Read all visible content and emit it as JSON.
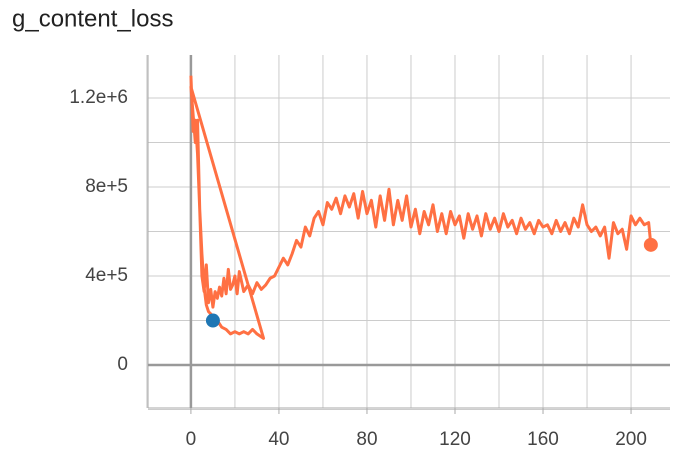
{
  "chart_data": {
    "type": "line",
    "title": "g_content_loss",
    "xlim": [
      -19.5,
      217.7
    ],
    "ylim": [
      -193000,
      1393000
    ],
    "xticks": [
      0,
      40,
      80,
      120,
      160,
      200
    ],
    "x_minor_ticks": [
      -20,
      20,
      60,
      100,
      140,
      180
    ],
    "yticks": [
      0,
      {
        "value": 400000,
        "label": "4e+5"
      },
      {
        "value": 800000,
        "label": "8e+5"
      },
      {
        "value": 1200000,
        "label": "1.2e+6"
      }
    ],
    "y_minor_ticks": [
      -200000,
      200000,
      600000,
      1000000
    ],
    "grid": true,
    "series": [
      {
        "color": "#ff7043",
        "x": [
          0,
          1,
          2,
          3,
          4,
          5,
          6,
          7,
          8,
          10,
          12,
          14,
          16,
          18,
          20,
          22,
          24,
          26,
          28,
          30,
          33,
          0,
          2,
          3,
          4,
          5,
          6,
          7,
          8,
          9,
          10,
          11,
          12,
          13,
          14,
          15,
          16,
          17,
          18,
          19,
          20,
          21,
          22,
          24,
          26,
          28,
          30,
          32,
          34,
          36,
          38,
          40,
          42,
          44,
          46,
          48,
          50,
          52,
          54,
          56,
          58,
          60,
          62,
          64,
          66,
          68,
          70,
          72,
          74,
          76,
          78,
          80,
          82,
          84,
          86,
          88,
          90,
          92,
          94,
          96,
          98,
          100,
          102,
          104,
          106,
          108,
          110,
          112,
          114,
          116,
          118,
          120,
          122,
          124,
          126,
          128,
          130,
          132,
          134,
          136,
          138,
          140,
          142,
          144,
          146,
          148,
          150,
          152,
          154,
          156,
          158,
          160,
          162,
          164,
          166,
          168,
          170,
          172,
          174,
          176,
          178,
          180,
          182,
          184,
          186,
          188,
          190,
          192,
          194,
          196,
          198,
          200,
          202,
          204,
          206,
          208,
          209
        ],
        "values": [
          1300000,
          1050000,
          1100000,
          950000,
          700000,
          500000,
          350000,
          270000,
          240000,
          220000,
          200000,
          170000,
          160000,
          140000,
          150000,
          140000,
          150000,
          140000,
          160000,
          140000,
          120000,
          1250000,
          1000000,
          1100000,
          700000,
          400000,
          330000,
          450000,
          280000,
          340000,
          260000,
          330000,
          300000,
          350000,
          310000,
          390000,
          320000,
          430000,
          340000,
          360000,
          400000,
          320000,
          420000,
          330000,
          360000,
          320000,
          370000,
          340000,
          360000,
          390000,
          400000,
          440000,
          480000,
          450000,
          500000,
          560000,
          530000,
          620000,
          580000,
          660000,
          690000,
          630000,
          730000,
          700000,
          750000,
          680000,
          760000,
          710000,
          770000,
          660000,
          780000,
          680000,
          740000,
          620000,
          760000,
          650000,
          790000,
          630000,
          740000,
          650000,
          760000,
          620000,
          700000,
          590000,
          690000,
          630000,
          720000,
          600000,
          680000,
          590000,
          690000,
          630000,
          670000,
          570000,
          680000,
          610000,
          670000,
          580000,
          680000,
          610000,
          660000,
          600000,
          680000,
          620000,
          650000,
          590000,
          660000,
          610000,
          640000,
          590000,
          650000,
          620000,
          630000,
          590000,
          650000,
          600000,
          640000,
          590000,
          660000,
          620000,
          720000,
          630000,
          600000,
          620000,
          580000,
          620000,
          480000,
          640000,
          590000,
          610000,
          520000,
          670000,
          630000,
          660000,
          630000,
          640000,
          540000
        ]
      },
      {
        "color": "#1f77b4",
        "x": [
          10
        ],
        "values": [
          200000
        ]
      }
    ]
  }
}
